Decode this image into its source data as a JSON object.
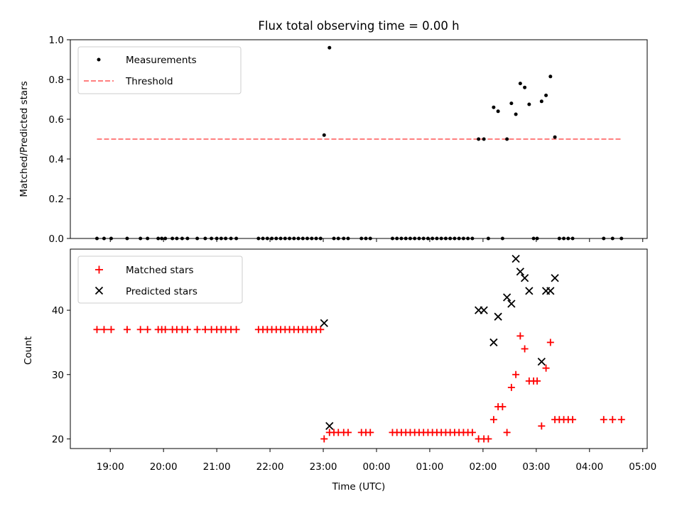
{
  "chart_data": [
    {
      "type": "scatter",
      "title": "Flux total observing time = 0.00 h",
      "xlabel": "",
      "ylabel": "Matched/Predicted stars",
      "ylim": [
        0,
        1
      ],
      "yticks": [
        "0.0",
        "0.2",
        "0.4",
        "0.6",
        "0.8",
        "1.0"
      ],
      "xlim": [
        "18:15",
        "05:05"
      ],
      "grid": false,
      "legend_position": "upper-left",
      "series": [
        {
          "name": "Measurements",
          "marker": "dot",
          "color": "#000000",
          "points": [
            [
              "18:45",
              0
            ],
            [
              "18:53",
              0
            ],
            [
              "19:01",
              0
            ],
            [
              "19:19",
              0
            ],
            [
              "19:34",
              0
            ],
            [
              "19:42",
              0
            ],
            [
              "19:54",
              0
            ],
            [
              "19:58",
              0
            ],
            [
              "20:02",
              0
            ],
            [
              "20:10",
              0
            ],
            [
              "20:15",
              0
            ],
            [
              "20:21",
              0
            ],
            [
              "20:27",
              0
            ],
            [
              "20:38",
              0
            ],
            [
              "20:47",
              0
            ],
            [
              "20:54",
              0
            ],
            [
              "21:00",
              0
            ],
            [
              "21:05",
              0
            ],
            [
              "21:10",
              0
            ],
            [
              "21:16",
              0
            ],
            [
              "21:22",
              0
            ],
            [
              "21:47",
              0
            ],
            [
              "21:52",
              0
            ],
            [
              "21:57",
              0
            ],
            [
              "22:02",
              0
            ],
            [
              "22:07",
              0
            ],
            [
              "22:12",
              0
            ],
            [
              "22:17",
              0
            ],
            [
              "22:22",
              0
            ],
            [
              "22:27",
              0
            ],
            [
              "22:32",
              0
            ],
            [
              "22:37",
              0
            ],
            [
              "22:42",
              0
            ],
            [
              "22:47",
              0
            ],
            [
              "22:52",
              0
            ],
            [
              "22:57",
              0
            ],
            [
              "23:01",
              0.52
            ],
            [
              "23:07",
              0.96
            ],
            [
              "23:12",
              0
            ],
            [
              "23:17",
              0
            ],
            [
              "23:23",
              0
            ],
            [
              "23:28",
              0
            ],
            [
              "23:43",
              0
            ],
            [
              "23:48",
              0
            ],
            [
              "23:53",
              0
            ],
            [
              "00:18",
              0
            ],
            [
              "00:23",
              0
            ],
            [
              "00:28",
              0
            ],
            [
              "00:33",
              0
            ],
            [
              "00:38",
              0
            ],
            [
              "00:43",
              0
            ],
            [
              "00:48",
              0
            ],
            [
              "00:53",
              0
            ],
            [
              "00:58",
              0
            ],
            [
              "01:03",
              0
            ],
            [
              "01:08",
              0
            ],
            [
              "01:13",
              0
            ],
            [
              "01:18",
              0
            ],
            [
              "01:23",
              0
            ],
            [
              "01:28",
              0
            ],
            [
              "01:33",
              0
            ],
            [
              "01:38",
              0
            ],
            [
              "01:43",
              0
            ],
            [
              "01:48",
              0
            ],
            [
              "01:55",
              0.5
            ],
            [
              "02:01",
              0.5
            ],
            [
              "02:06",
              0
            ],
            [
              "02:12",
              0.66
            ],
            [
              "02:17",
              0.64
            ],
            [
              "02:22",
              0
            ],
            [
              "02:27",
              0.5
            ],
            [
              "02:32",
              0.68
            ],
            [
              "02:37",
              0.625
            ],
            [
              "02:42",
              0.78
            ],
            [
              "02:47",
              0.76
            ],
            [
              "02:52",
              0.675
            ],
            [
              "02:57",
              0
            ],
            [
              "03:01",
              0
            ],
            [
              "03:06",
              0.69
            ],
            [
              "03:11",
              0.72
            ],
            [
              "03:16",
              0.815
            ],
            [
              "03:21",
              0.51
            ],
            [
              "03:26",
              0
            ],
            [
              "03:31",
              0
            ],
            [
              "03:36",
              0
            ],
            [
              "03:41",
              0
            ],
            [
              "04:16",
              0
            ],
            [
              "04:26",
              0
            ],
            [
              "04:36",
              0
            ]
          ]
        },
        {
          "name": "Threshold",
          "style": "dashed",
          "color": "#ff7f7f",
          "points": [
            [
              "18:45",
              0.5
            ],
            [
              "04:36",
              0.5
            ]
          ]
        }
      ]
    },
    {
      "type": "scatter",
      "title": "",
      "xlabel": "Time (UTC)",
      "ylabel": "Count",
      "ylim": [
        18.5,
        49.5
      ],
      "yticks": [
        "20",
        "30",
        "40"
      ],
      "xlim": [
        "18:15",
        "05:05"
      ],
      "xticks": [
        "19:00",
        "20:00",
        "21:00",
        "22:00",
        "23:00",
        "00:00",
        "01:00",
        "02:00",
        "03:00",
        "04:00",
        "05:00"
      ],
      "grid": false,
      "legend_position": "upper-left",
      "series": [
        {
          "name": "Matched stars",
          "marker": "plus",
          "color": "#ff0000",
          "points": [
            [
              "18:45",
              37
            ],
            [
              "18:53",
              37
            ],
            [
              "19:01",
              37
            ],
            [
              "19:19",
              37
            ],
            [
              "19:34",
              37
            ],
            [
              "19:42",
              37
            ],
            [
              "19:54",
              37
            ],
            [
              "19:58",
              37
            ],
            [
              "20:02",
              37
            ],
            [
              "20:10",
              37
            ],
            [
              "20:15",
              37
            ],
            [
              "20:21",
              37
            ],
            [
              "20:27",
              37
            ],
            [
              "20:38",
              37
            ],
            [
              "20:47",
              37
            ],
            [
              "20:54",
              37
            ],
            [
              "21:00",
              37
            ],
            [
              "21:05",
              37
            ],
            [
              "21:10",
              37
            ],
            [
              "21:16",
              37
            ],
            [
              "21:22",
              37
            ],
            [
              "21:47",
              37
            ],
            [
              "21:52",
              37
            ],
            [
              "21:57",
              37
            ],
            [
              "22:02",
              37
            ],
            [
              "22:07",
              37
            ],
            [
              "22:12",
              37
            ],
            [
              "22:17",
              37
            ],
            [
              "22:22",
              37
            ],
            [
              "22:27",
              37
            ],
            [
              "22:32",
              37
            ],
            [
              "22:37",
              37
            ],
            [
              "22:42",
              37
            ],
            [
              "22:47",
              37
            ],
            [
              "22:52",
              37
            ],
            [
              "22:57",
              37
            ],
            [
              "23:01",
              20
            ],
            [
              "23:07",
              21
            ],
            [
              "23:12",
              21
            ],
            [
              "23:17",
              21
            ],
            [
              "23:23",
              21
            ],
            [
              "23:28",
              21
            ],
            [
              "23:43",
              21
            ],
            [
              "23:48",
              21
            ],
            [
              "23:53",
              21
            ],
            [
              "00:18",
              21
            ],
            [
              "00:23",
              21
            ],
            [
              "00:28",
              21
            ],
            [
              "00:33",
              21
            ],
            [
              "00:38",
              21
            ],
            [
              "00:43",
              21
            ],
            [
              "00:48",
              21
            ],
            [
              "00:53",
              21
            ],
            [
              "00:58",
              21
            ],
            [
              "01:03",
              21
            ],
            [
              "01:08",
              21
            ],
            [
              "01:13",
              21
            ],
            [
              "01:18",
              21
            ],
            [
              "01:23",
              21
            ],
            [
              "01:28",
              21
            ],
            [
              "01:33",
              21
            ],
            [
              "01:38",
              21
            ],
            [
              "01:43",
              21
            ],
            [
              "01:48",
              21
            ],
            [
              "01:55",
              20
            ],
            [
              "02:01",
              20
            ],
            [
              "02:06",
              20
            ],
            [
              "02:12",
              23
            ],
            [
              "02:17",
              25
            ],
            [
              "02:22",
              25
            ],
            [
              "02:27",
              21
            ],
            [
              "02:32",
              28
            ],
            [
              "02:37",
              30
            ],
            [
              "02:42",
              36
            ],
            [
              "02:47",
              34
            ],
            [
              "02:52",
              29
            ],
            [
              "02:57",
              29
            ],
            [
              "03:01",
              29
            ],
            [
              "03:06",
              22
            ],
            [
              "03:11",
              31
            ],
            [
              "03:16",
              35
            ],
            [
              "03:21",
              23
            ],
            [
              "03:26",
              23
            ],
            [
              "03:31",
              23
            ],
            [
              "03:36",
              23
            ],
            [
              "03:41",
              23
            ],
            [
              "04:16",
              23
            ],
            [
              "04:26",
              23
            ],
            [
              "04:36",
              23
            ]
          ]
        },
        {
          "name": "Predicted stars",
          "marker": "x",
          "color": "#000000",
          "points": [
            [
              "23:01",
              38
            ],
            [
              "23:07",
              22
            ],
            [
              "01:55",
              40
            ],
            [
              "02:01",
              40
            ],
            [
              "02:12",
              35
            ],
            [
              "02:17",
              39
            ],
            [
              "02:27",
              42
            ],
            [
              "02:32",
              41
            ],
            [
              "02:37",
              48
            ],
            [
              "02:42",
              46
            ],
            [
              "02:47",
              45
            ],
            [
              "02:52",
              43
            ],
            [
              "03:06",
              32
            ],
            [
              "03:11",
              43
            ],
            [
              "03:16",
              43
            ],
            [
              "03:21",
              45
            ]
          ]
        }
      ]
    }
  ]
}
